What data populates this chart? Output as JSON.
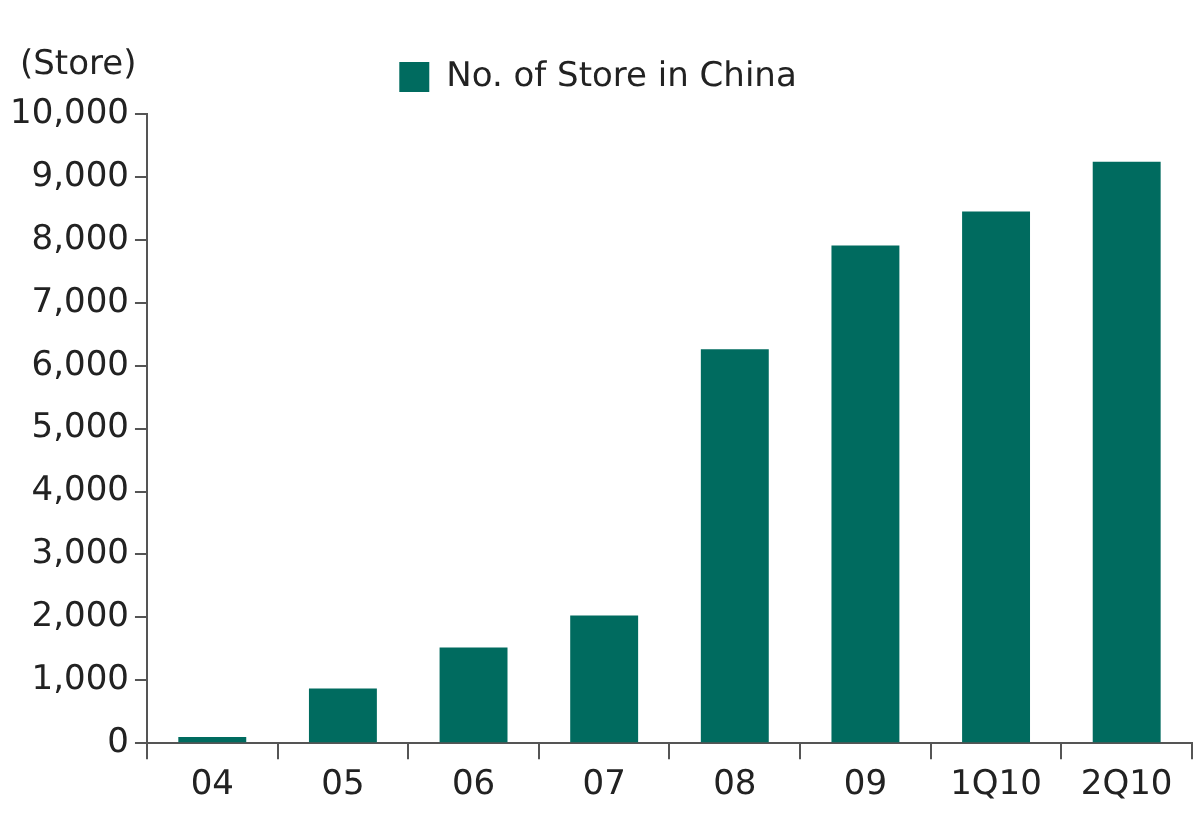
{
  "chart_data": {
    "type": "bar",
    "ylabel": "(Store)",
    "categories": [
      "04",
      "05",
      "06",
      "07",
      "08",
      "09",
      "1Q10",
      "2Q10"
    ],
    "series": [
      {
        "name": "No. of Store in China",
        "color": "#006b5f",
        "values": [
          100,
          870,
          1520,
          2030,
          6260,
          7910,
          8450,
          9240
        ]
      }
    ],
    "ylim": [
      0,
      10000
    ],
    "yticks": [
      {
        "value": 0,
        "label": "0"
      },
      {
        "value": 1000,
        "label": "1,000"
      },
      {
        "value": 2000,
        "label": "2,000"
      },
      {
        "value": 3000,
        "label": "3,000"
      },
      {
        "value": 4000,
        "label": "4,000"
      },
      {
        "value": 5000,
        "label": "5,000"
      },
      {
        "value": 6000,
        "label": "6,000"
      },
      {
        "value": 7000,
        "label": "7,000"
      },
      {
        "value": 8000,
        "label": "8,000"
      },
      {
        "value": 9000,
        "label": "9,000"
      },
      {
        "value": 10000,
        "label": "10,000"
      }
    ],
    "grid": false,
    "legend": "top"
  }
}
